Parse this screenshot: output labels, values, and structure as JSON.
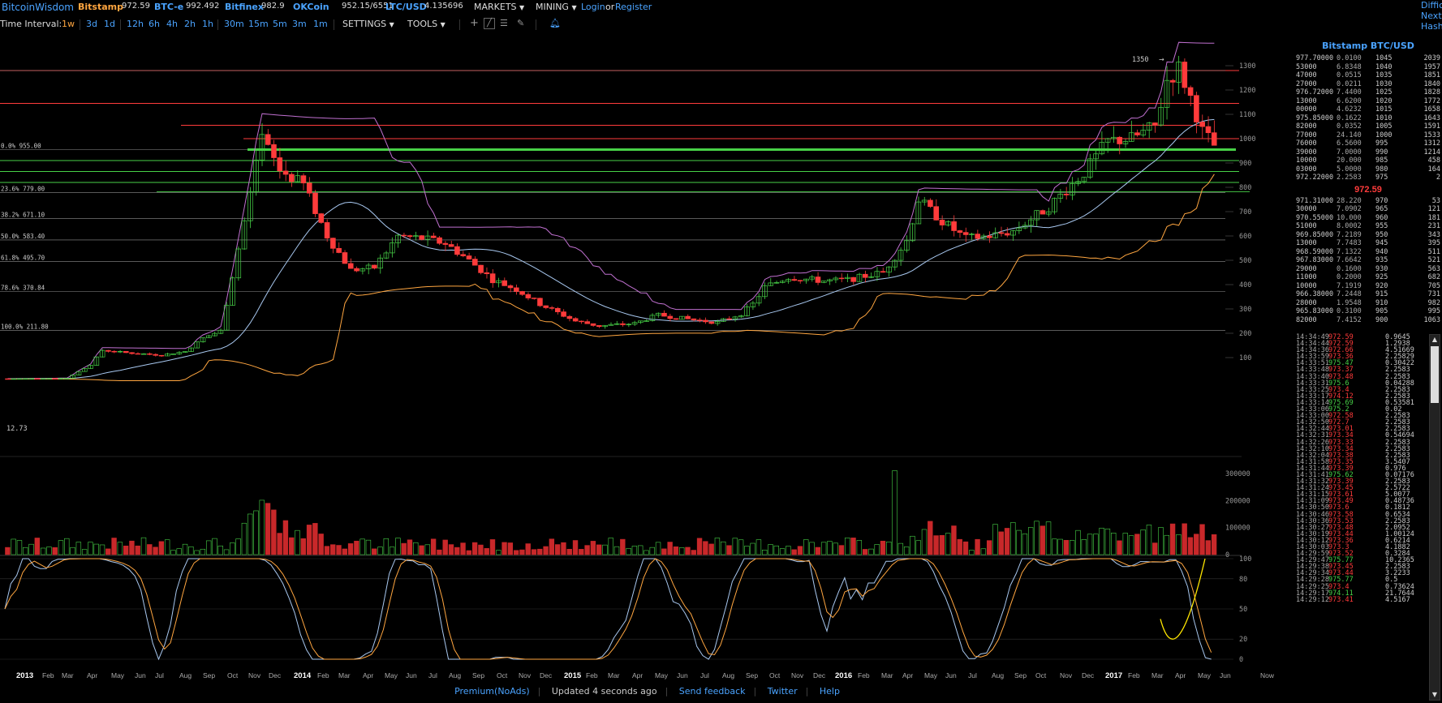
{
  "header": {
    "logo": "BitcoinWisdom",
    "exchanges": [
      {
        "name": "Bitstamp",
        "price": "972.59",
        "style": "orange"
      },
      {
        "name": "BTC-e",
        "price": "992.492",
        "style": "blue"
      },
      {
        "name": "Bitfinex",
        "price": "982.9",
        "style": "blue"
      },
      {
        "name": "OKCoin",
        "price": "952.15/6551",
        "style": "blue"
      },
      {
        "name": "LTC/USD",
        "price": "4.135696",
        "style": "blue"
      }
    ],
    "markets": "MARKETS",
    "mining": "MINING",
    "login": "Login",
    "or": "or",
    "register": "Register",
    "right_cut": [
      "Diffic",
      "Next:",
      "Hash"
    ]
  },
  "toolbar": {
    "interval_label": "Time Interval:",
    "intervals": [
      "1w",
      "3d",
      "1d",
      "12h",
      "6h",
      "4h",
      "2h",
      "1h",
      "30m",
      "15m",
      "5m",
      "3m",
      "1m"
    ],
    "active": "1w",
    "settings": "SETTINGS",
    "tools": "TOOLS"
  },
  "chart": {
    "price_ticks": [
      "1300",
      "1200",
      "1100",
      "1000",
      "900",
      "800",
      "700",
      "600",
      "500",
      "400",
      "300",
      "200",
      "100"
    ],
    "peak_label": "1350",
    "start_label": "12.73",
    "fib_levels": [
      {
        "label": "0.0% 955.00"
      },
      {
        "label": "23.6% 779.00"
      },
      {
        "label": "38.2% 671.10"
      },
      {
        "label": "50.0% 583.40"
      },
      {
        "label": "61.8% 495.70"
      },
      {
        "label": "78.6% 370.84"
      },
      {
        "label": "100.0% 211.80"
      }
    ],
    "volume_ticks": [
      "300000",
      "200000",
      "100000",
      "0"
    ],
    "osc_ticks": [
      "100",
      "80",
      "50",
      "20",
      "0"
    ],
    "x_labels": [
      "2013",
      "Feb",
      "Mar",
      "Apr",
      "May",
      "Jun",
      "Jul",
      "Aug",
      "Sep",
      "Oct",
      "Nov",
      "Dec",
      "2014",
      "Feb",
      "Mar",
      "Apr",
      "May",
      "Jun",
      "Jul",
      "Aug",
      "Sep",
      "Oct",
      "Nov",
      "Dec",
      "2015",
      "Feb",
      "Mar",
      "Apr",
      "May",
      "Jun",
      "Jul",
      "Aug",
      "Sep",
      "Oct",
      "Nov",
      "Dec",
      "2016",
      "Feb",
      "Mar",
      "Apr",
      "May",
      "Jun",
      "Jul",
      "Aug",
      "Sep",
      "Oct",
      "Nov",
      "Dec",
      "2017",
      "Feb",
      "Mar",
      "Apr",
      "May",
      "Jun",
      "Now"
    ],
    "colors": {
      "up": "#47d147",
      "down": "#ff3b3b",
      "ma_fast": "#a8c8f0",
      "band_upper": "#c070d0",
      "band_lower": "#ffa640",
      "fib_line": "#cccccc",
      "resistance": "#ff3b3b",
      "support": "#47d147"
    }
  },
  "side": {
    "title": "Bitstamp BTC/USD",
    "asks": [
      [
        "977.70000",
        "0.0100",
        "1045",
        "2039"
      ],
      [
        "53000",
        "6.8348",
        "1040",
        "1957"
      ],
      [
        "47000",
        "0.0515",
        "1035",
        "1851"
      ],
      [
        "27000",
        "0.0211",
        "1030",
        "1840"
      ],
      [
        "976.72000",
        "7.4400",
        "1025",
        "1828"
      ],
      [
        "13000",
        "6.6200",
        "1020",
        "1772"
      ],
      [
        "00000",
        "4.6232",
        "1015",
        "1658"
      ],
      [
        "975.85000",
        "0.1622",
        "1010",
        "1643"
      ],
      [
        "82000",
        "0.0352",
        "1005",
        "1591"
      ],
      [
        "77000",
        "24.140",
        "1000",
        "1533"
      ],
      [
        "76000",
        "6.5600",
        "995",
        "1312"
      ],
      [
        "39000",
        "7.0000",
        "990",
        "1214"
      ],
      [
        "10000",
        "20.000",
        "985",
        "458"
      ],
      [
        "03000",
        "5.0000",
        "980",
        "164"
      ],
      [
        "972.22000",
        "2.2583",
        "975",
        "2"
      ]
    ],
    "last_price": "972.59",
    "bids": [
      [
        "971.31000",
        "28.220",
        "970",
        "53"
      ],
      [
        "30000",
        "7.0902",
        "965",
        "121"
      ],
      [
        "970.55000",
        "10.000",
        "960",
        "181"
      ],
      [
        "51000",
        "8.0002",
        "955",
        "231"
      ],
      [
        "969.85000",
        "7.2189",
        "950",
        "343"
      ],
      [
        "13000",
        "7.7483",
        "945",
        "395"
      ],
      [
        "968.59000",
        "7.1322",
        "940",
        "511"
      ],
      [
        "967.83000",
        "7.6642",
        "935",
        "521"
      ],
      [
        "29000",
        "0.1600",
        "930",
        "563"
      ],
      [
        "11000",
        "0.2000",
        "925",
        "682"
      ],
      [
        "10000",
        "7.1919",
        "920",
        "705"
      ],
      [
        "966.38000",
        "7.2448",
        "915",
        "731"
      ],
      [
        "28000",
        "1.9548",
        "910",
        "982"
      ],
      [
        "965.83000",
        "0.3100",
        "905",
        "995"
      ],
      [
        "82000",
        "7.4152",
        "900",
        "1063"
      ]
    ],
    "trades": [
      [
        "14:34:49",
        "972.59",
        "0.9645",
        "down"
      ],
      [
        "14:34:44",
        "972.59",
        "1.2938",
        "down"
      ],
      [
        "14:34:36",
        "972.66",
        "4.51669",
        "down"
      ],
      [
        "14:33:59",
        "973.36",
        "2.25829",
        "down"
      ],
      [
        "14:33:51",
        "975.47",
        "0.30422",
        "up"
      ],
      [
        "14:33:48",
        "973.37",
        "2.2583",
        "down"
      ],
      [
        "14:33:40",
        "973.48",
        "2.2583",
        "down"
      ],
      [
        "14:33:31",
        "975.6",
        "0.04288",
        "up"
      ],
      [
        "14:33:25",
        "973.4",
        "2.2583",
        "down"
      ],
      [
        "14:33:17",
        "974.12",
        "2.2583",
        "down"
      ],
      [
        "14:33:14",
        "975.69",
        "0.53581",
        "up"
      ],
      [
        "14:33:06",
        "975.2",
        "0.02",
        "up"
      ],
      [
        "14:33:00",
        "972.58",
        "2.2583",
        "down"
      ],
      [
        "14:32:50",
        "972.7",
        "2.2583",
        "down"
      ],
      [
        "14:32:44",
        "973.01",
        "2.2583",
        "down"
      ],
      [
        "14:32:31",
        "973.34",
        "0.54694",
        "down"
      ],
      [
        "14:32:26",
        "973.33",
        "2.2583",
        "down"
      ],
      [
        "14:32:10",
        "973.34",
        "2.2583",
        "down"
      ],
      [
        "14:32:04",
        "973.38",
        "2.2583",
        "down"
      ],
      [
        "14:31:58",
        "973.35",
        "3.5407",
        "down"
      ],
      [
        "14:31:44",
        "973.39",
        "0.976",
        "down"
      ],
      [
        "14:31:41",
        "975.62",
        "0.07176",
        "up"
      ],
      [
        "14:31:32",
        "973.39",
        "2.2583",
        "down"
      ],
      [
        "14:31:24",
        "973.45",
        "2.5722",
        "down"
      ],
      [
        "14:31:15",
        "973.61",
        "5.0077",
        "down"
      ],
      [
        "14:31:09",
        "973.49",
        "0.48736",
        "down"
      ],
      [
        "14:30:50",
        "973.6",
        "0.1812",
        "down"
      ],
      [
        "14:30:46",
        "973.58",
        "0.6534",
        "down"
      ],
      [
        "14:30:36",
        "973.53",
        "2.2583",
        "down"
      ],
      [
        "14:30:27",
        "973.48",
        "2.0952",
        "down"
      ],
      [
        "14:30:19",
        "973.44",
        "1.00124",
        "down"
      ],
      [
        "14:30:12",
        "973.36",
        "0.6214",
        "down"
      ],
      [
        "14:30:03",
        "973.3",
        "4.1882",
        "down"
      ],
      [
        "14:29:59",
        "973.52",
        "0.3284",
        "down"
      ],
      [
        "14:29:47",
        "975.77",
        "10.2365",
        "up"
      ],
      [
        "14:29:38",
        "973.45",
        "2.2583",
        "down"
      ],
      [
        "14:29:34",
        "973.44",
        "3.2233",
        "down"
      ],
      [
        "14:29:28",
        "975.77",
        "0.5",
        "up"
      ],
      [
        "14:29:25",
        "973.4",
        "0.73624",
        "down"
      ],
      [
        "14:29:17",
        "974.11",
        "21.7644",
        "up"
      ],
      [
        "14:29:12",
        "973.41",
        "4.5167",
        "down"
      ]
    ]
  },
  "footer": {
    "premium": "Premium(NoAds)",
    "updated": "Updated 4 seconds ago",
    "feedback": "Send feedback",
    "twitter": "Twitter",
    "help": "Help"
  }
}
